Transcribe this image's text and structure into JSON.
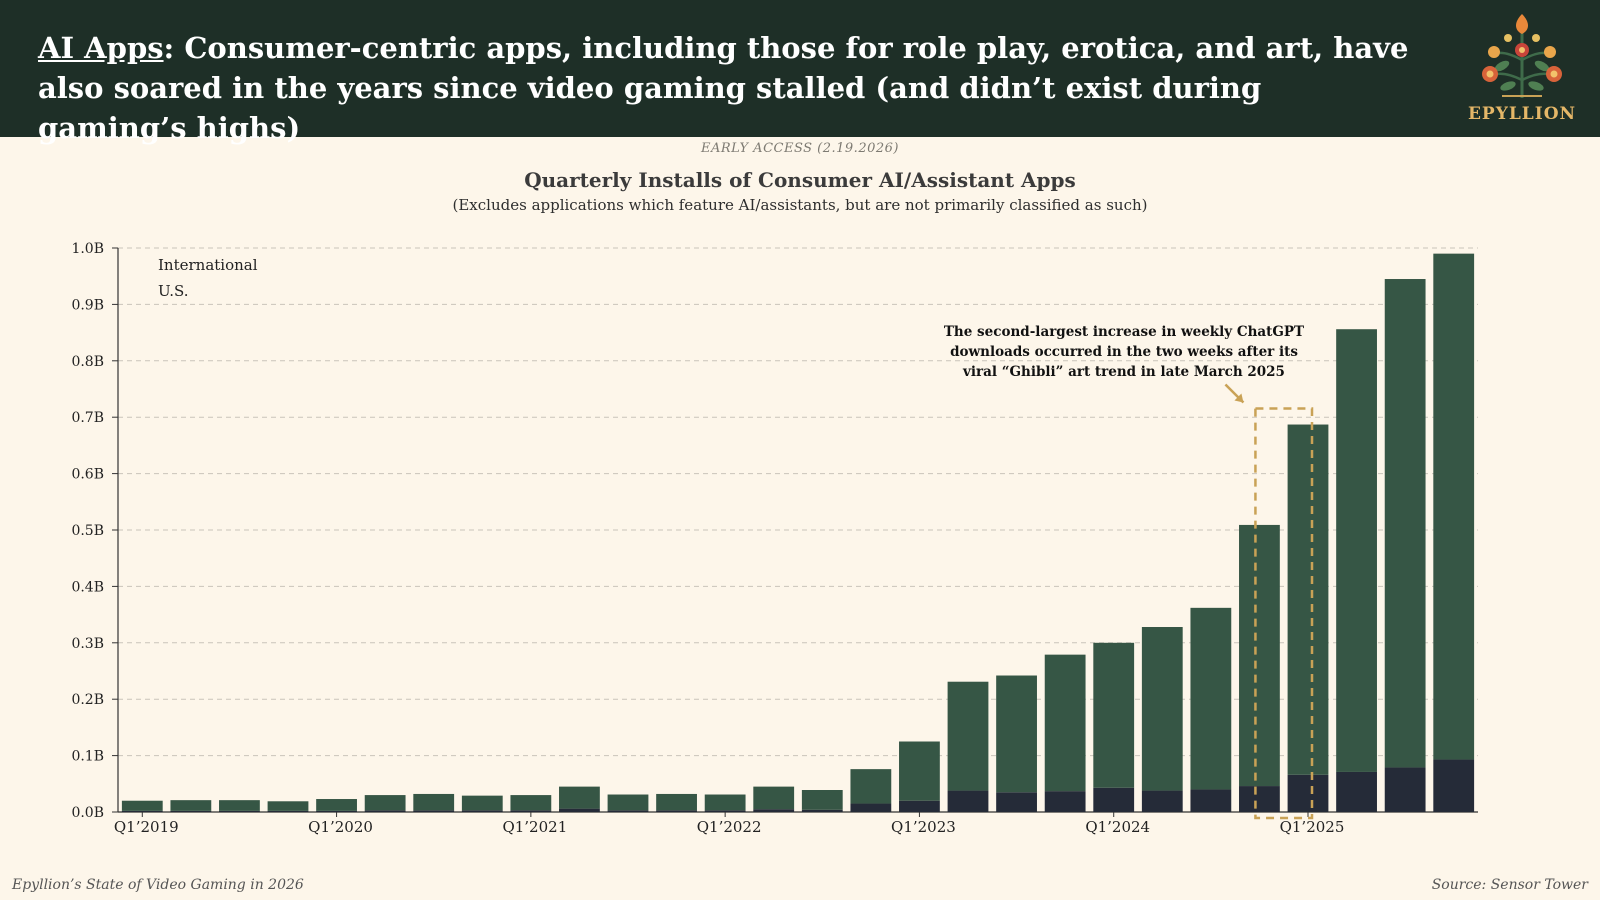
{
  "header": {
    "headline_key": "AI Apps",
    "headline_rest": ": Consumer-centric apps, including those for role play, erotica, and art, have also soared in the years since video gaming stalled (and didn’t exist during gaming’s highs)",
    "logo_text": "EPYLLION"
  },
  "tag": "EARLY ACCESS (2.19.2026)",
  "footer": {
    "left": "Epyllion’s State of Video Gaming in 2026",
    "right": "Source: Sensor Tower"
  },
  "colors": {
    "header_bg": "#1e2f27",
    "background": "#fdf6ea",
    "international": "#365645",
    "us": "#252b38",
    "annotation_box": "#c9a256"
  },
  "chart_data": {
    "type": "bar",
    "stacked": true,
    "title": "Quarterly Installs of Consumer AI/Assistant Apps",
    "subtitle": "(Excludes applications which feature AI/assistants, but are not primarily classified as such)",
    "xlabel": "",
    "ylabel": "",
    "ylim": [
      0,
      1.0
    ],
    "yticks": [
      "0.0B",
      "0.1B",
      "0.2B",
      "0.3B",
      "0.4B",
      "0.5B",
      "0.6B",
      "0.7B",
      "0.8B",
      "0.9B",
      "1.0B"
    ],
    "grid": true,
    "legend_position": "top-left",
    "categories": [
      "Q1’2019",
      "Q2’2019",
      "Q3’2019",
      "Q4’2019",
      "Q1’2020",
      "Q2’2020",
      "Q3’2020",
      "Q4’2020",
      "Q1’2021",
      "Q2’2021",
      "Q3’2021",
      "Q4’2021",
      "Q1’2022",
      "Q2’2022",
      "Q3’2022",
      "Q4’2022",
      "Q1’2023",
      "Q2’2023",
      "Q3’2023",
      "Q4’2023",
      "Q1’2024",
      "Q2’2024",
      "Q3’2024",
      "Q4’2024",
      "Q1’2025",
      "Q2’2025",
      "Q3’2025",
      "Q4’2025"
    ],
    "xtick_labels": [
      "Q1’2019",
      "",
      "",
      "",
      "Q1’2020",
      "",
      "",
      "",
      "Q1’2021",
      "",
      "",
      "",
      "Q1’2022",
      "",
      "",
      "",
      "Q1’2023",
      "",
      "",
      "",
      "Q1’2024",
      "",
      "",
      "",
      "Q1’2025",
      "",
      "",
      ""
    ],
    "series": [
      {
        "name": "U.S.",
        "color": "#252b38",
        "values": [
          0.002,
          0.002,
          0.002,
          0.002,
          0.002,
          0.003,
          0.003,
          0.003,
          0.003,
          0.006,
          0.003,
          0.003,
          0.003,
          0.005,
          0.004,
          0.015,
          0.02,
          0.038,
          0.035,
          0.037,
          0.043,
          0.038,
          0.04,
          0.046,
          0.066,
          0.071,
          0.079,
          0.093
        ]
      },
      {
        "name": "International",
        "color": "#365645",
        "values": [
          0.018,
          0.019,
          0.019,
          0.017,
          0.021,
          0.027,
          0.029,
          0.026,
          0.027,
          0.039,
          0.028,
          0.029,
          0.028,
          0.04,
          0.035,
          0.061,
          0.105,
          0.193,
          0.207,
          0.242,
          0.257,
          0.29,
          0.322,
          0.463,
          0.621,
          0.785,
          0.866,
          0.897
        ]
      }
    ],
    "annotation": {
      "text": "The second-largest increase in weekly ChatGPT downloads occurred in the two weeks after its viral “Ghibli” art trend in late March 2025",
      "highlight_category": "Q1’2025"
    }
  }
}
